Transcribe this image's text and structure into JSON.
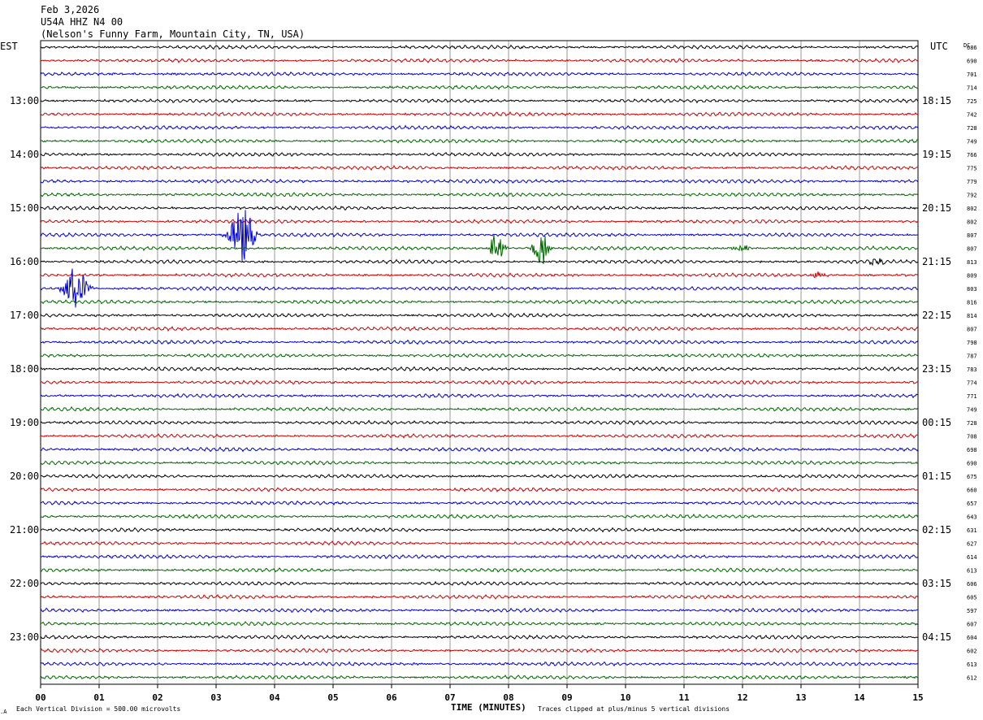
{
  "header": {
    "date": "Feb 3,2026",
    "station": "U54A HHZ N4 00",
    "location": "(Nelson's Funny Farm, Mountain City, TN, USA)"
  },
  "labels": {
    "left_tz": "EST",
    "right_tz": "UTC",
    "dc": "DC",
    "xlabel": "TIME (MINUTES)",
    "scale_note": "Each Vertical Division =  500.00 microvolts",
    "clip_note": "Traces clipped at plus/minus 5 vertical divisions"
  },
  "chart_data": {
    "type": "line",
    "title": "",
    "xlabel": "TIME (MINUTES)",
    "xlim": [
      0,
      15
    ],
    "x_ticks": [
      "00",
      "01",
      "02",
      "03",
      "04",
      "05",
      "06",
      "07",
      "08",
      "09",
      "10",
      "11",
      "12",
      "13",
      "14",
      "15"
    ],
    "trace_minutes": 15,
    "trace_colors": [
      "#000000",
      "#cc0000",
      "#0000cc",
      "#006600"
    ],
    "row_labels_est": [
      {
        "row": 0,
        "label": ""
      },
      {
        "row": 4,
        "label": "13:00"
      },
      {
        "row": 8,
        "label": "14:00"
      },
      {
        "row": 12,
        "label": "15:00"
      },
      {
        "row": 16,
        "label": "16:00"
      },
      {
        "row": 20,
        "label": "17:00"
      },
      {
        "row": 24,
        "label": "18:00"
      },
      {
        "row": 28,
        "label": "19:00"
      },
      {
        "row": 32,
        "label": "20:00"
      },
      {
        "row": 36,
        "label": "21:00"
      },
      {
        "row": 40,
        "label": "22:00"
      },
      {
        "row": 44,
        "label": "23:00"
      }
    ],
    "row_labels_utc": [
      {
        "row": 4,
        "label": "18:15"
      },
      {
        "row": 8,
        "label": "19:15"
      },
      {
        "row": 12,
        "label": "20:15"
      },
      {
        "row": 16,
        "label": "21:15"
      },
      {
        "row": 20,
        "label": "22:15"
      },
      {
        "row": 24,
        "label": "23:15"
      },
      {
        "row": 28,
        "label": "00:15"
      },
      {
        "row": 32,
        "label": "01:15"
      },
      {
        "row": 36,
        "label": "02:15"
      },
      {
        "row": 40,
        "label": "03:15"
      },
      {
        "row": 44,
        "label": "04:15"
      }
    ],
    "dc_offsets": [
      "686",
      "690",
      "701",
      "714",
      "725",
      "742",
      "728",
      "749",
      "766",
      "775",
      "779",
      "792",
      "802",
      "802",
      "807",
      "807",
      "813",
      "809",
      "803",
      "816",
      "814",
      "807",
      "798",
      "787",
      "783",
      "774",
      "771",
      "749",
      "728",
      "708",
      "698",
      "690",
      "675",
      "660",
      "657",
      "643",
      "631",
      "627",
      "614",
      "613",
      "606",
      "605",
      "597",
      "607",
      "604",
      "602",
      "613",
      "612"
    ],
    "events": [
      {
        "row": 14,
        "start_min": 3.0,
        "end_min": 3.7,
        "peak_min": 3.45,
        "amplitude_div": 5
      },
      {
        "row": 18,
        "start_min": 0.3,
        "end_min": 1.0,
        "peak_min": 0.6,
        "amplitude_div": 3.5
      },
      {
        "row": 15,
        "start_min": 7.6,
        "end_min": 8.0,
        "peak_min": 7.8,
        "amplitude_div": 3
      },
      {
        "row": 15,
        "start_min": 8.35,
        "end_min": 8.75,
        "peak_min": 8.55,
        "amplitude_div": 4
      },
      {
        "row": 15,
        "start_min": 11.8,
        "end_min": 12.3,
        "peak_min": 12.0,
        "amplitude_div": 0.6
      },
      {
        "row": 16,
        "start_min": 14.0,
        "end_min": 14.5,
        "peak_min": 14.3,
        "amplitude_div": 0.6
      },
      {
        "row": 17,
        "start_min": 13.1,
        "end_min": 13.5,
        "peak_min": 13.3,
        "amplitude_div": 0.5
      }
    ]
  }
}
